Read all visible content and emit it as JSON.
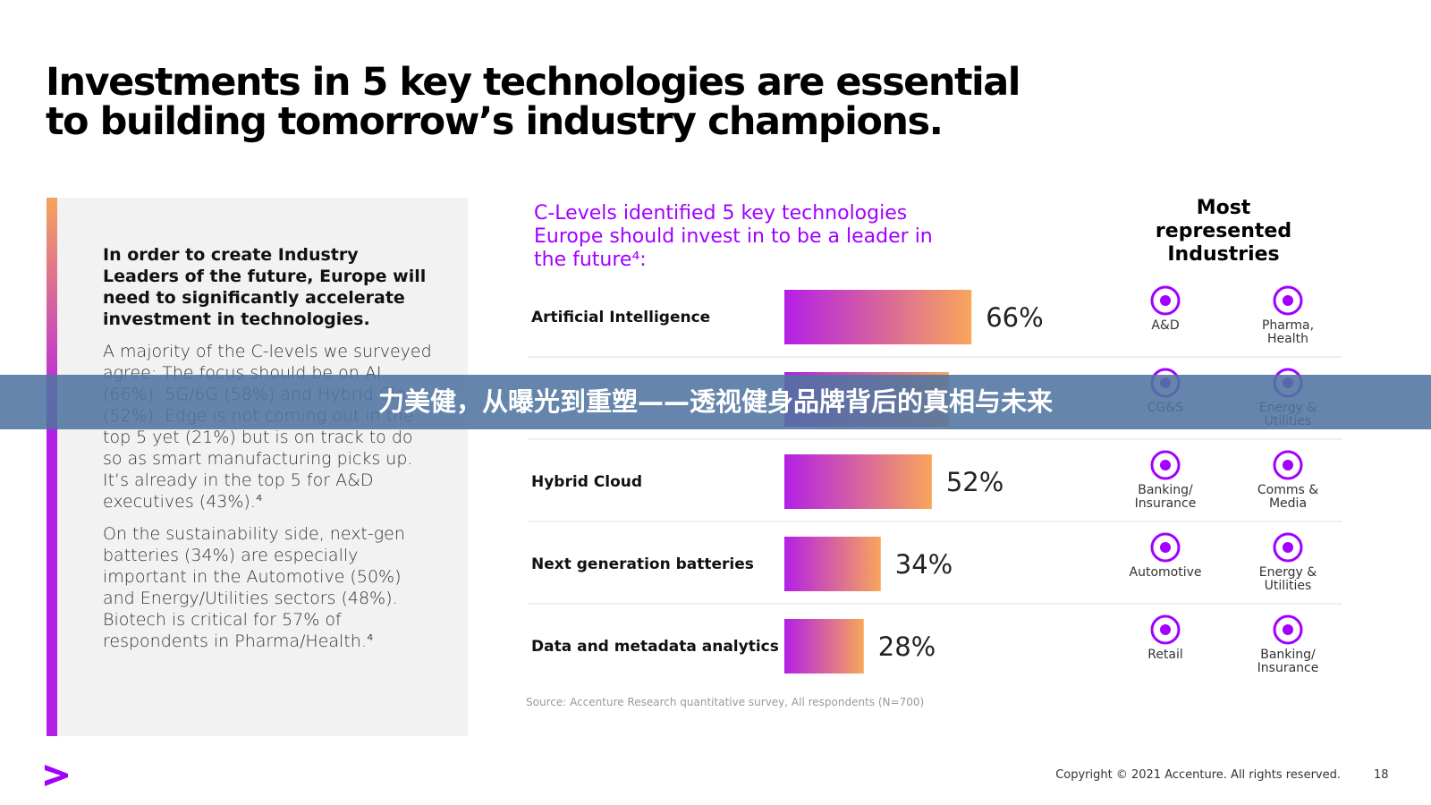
{
  "title": [
    "Investments in 5 key technologies are essential",
    "to building tomorrow’s industry champions."
  ],
  "intro": {
    "lead": "In order to create Industry Leaders of the future, Europe will need to significantly accelerate investment in technologies.",
    "paragraphs": [
      "A majority of the C-levels we surveyed agree: The focus should be on AI (66%), 5G/6G (58%) and Hybrid Cloud (52%). Edge is not coming out in the top 5 yet (21%) but is on track to do so as smart manufacturing picks up. It’s already in the top 5 for A&D executives (43%).⁴",
      "On the sustainability side, next-gen batteries (34%) are especially important in the Automotive (50%) and Energy/Utilities sectors (48%). Biotech is critical for 57% of respondents in Pharma/Health.⁴"
    ]
  },
  "chart_data": {
    "type": "bar",
    "orientation": "horizontal",
    "title": "C-Levels identified 5 key technologies Europe should invest in to be a leader in the future⁴:",
    "categories": [
      "Artificial Intelligence",
      null,
      "Hybrid Cloud",
      "Next generation batteries",
      "Data and metadata analytics"
    ],
    "values": [
      66,
      58,
      52,
      34,
      28
    ],
    "value_labels": [
      "66%",
      null,
      "52%",
      "34%",
      "28%"
    ],
    "xlim": [
      0,
      100
    ],
    "colors": [
      "#b41fe6",
      "#f8a65a"
    ]
  },
  "industries_heading": "Most represented Industries",
  "industries": [
    [
      "A&D",
      "Pharma, Health"
    ],
    [
      "CG&S",
      "Energy & Utilities"
    ],
    [
      "Banking/ Insurance",
      "Comms & Media"
    ],
    [
      "Automotive",
      "Energy & Utilities"
    ],
    [
      "Retail",
      "Banking/ Insurance"
    ]
  ],
  "source": "Source: Accenture Research quantitative survey, All respondents (N=700)",
  "banner": "力美健，从曝光到重塑——透视健身品牌背后的真相与未来",
  "footer": {
    "copyright": "Copyright © 2021 Accenture. All rights reserved.",
    "page": "18"
  }
}
